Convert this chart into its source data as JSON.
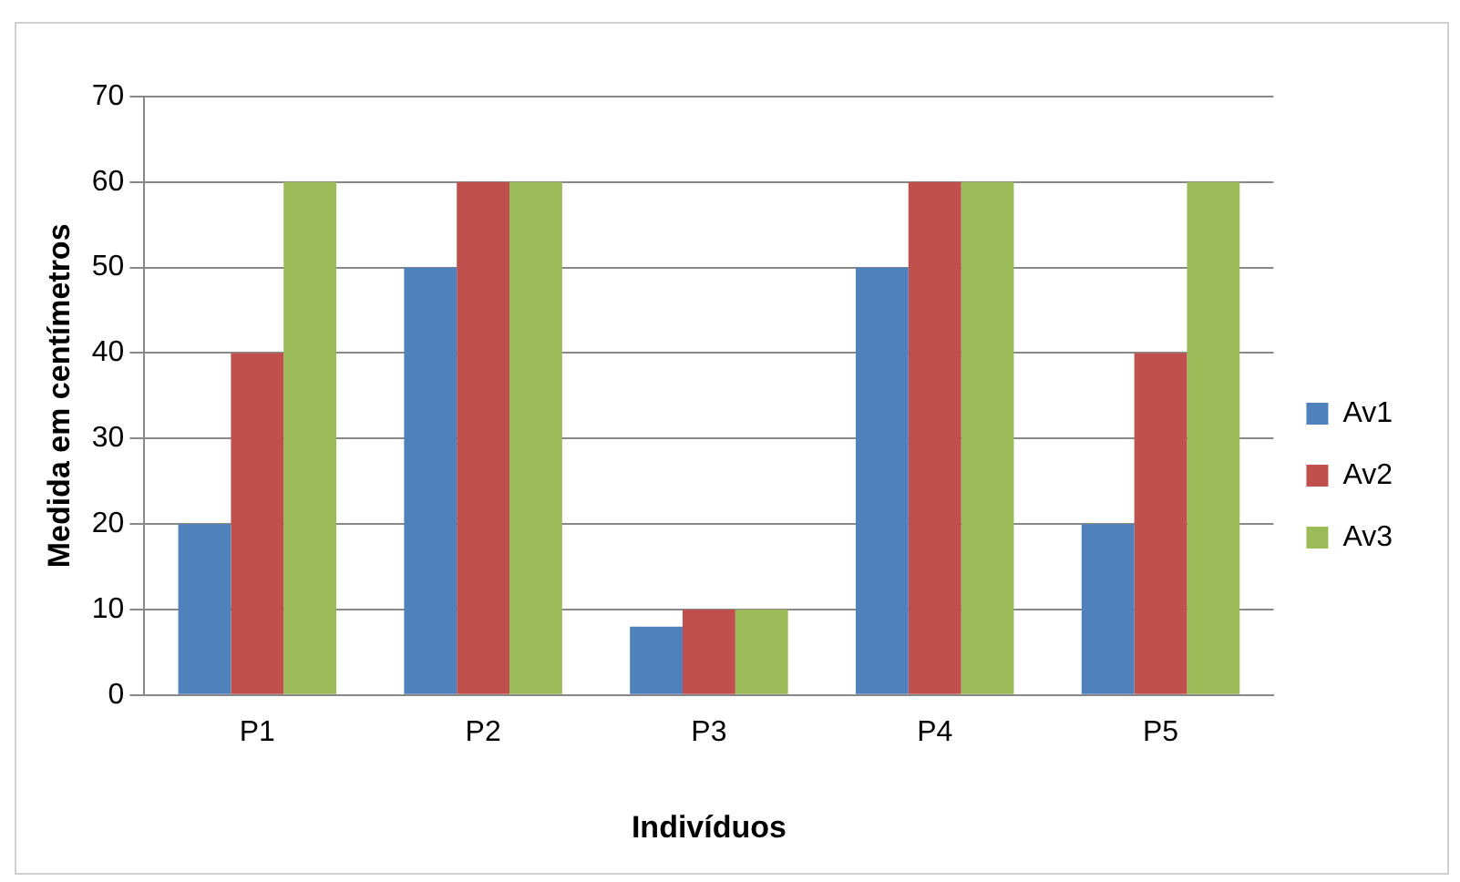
{
  "chart_data": {
    "type": "bar",
    "xlabel": "Indivíduos",
    "ylabel": "Medida em centímetros",
    "categories": [
      "P1",
      "P2",
      "P3",
      "P4",
      "P5"
    ],
    "series": [
      {
        "name": "Av1",
        "color": "#4f81bd",
        "values": [
          20,
          50,
          8,
          50,
          20
        ]
      },
      {
        "name": "Av2",
        "color": "#c0504d",
        "values": [
          40,
          60,
          10,
          60,
          40
        ]
      },
      {
        "name": "Av3",
        "color": "#9bbb59",
        "values": [
          60,
          60,
          10,
          60,
          60
        ]
      }
    ],
    "ylim": [
      0,
      70
    ],
    "yticks": [
      0,
      10,
      20,
      30,
      40,
      50,
      60,
      70
    ],
    "grid": "y",
    "legend": "right"
  }
}
